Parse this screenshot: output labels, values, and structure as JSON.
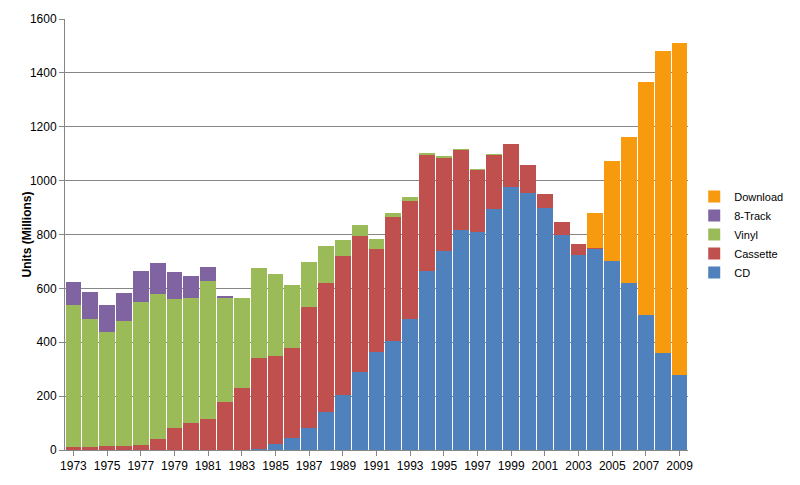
{
  "chart_data": {
    "type": "bar",
    "y_label": "Units (Millions)",
    "categories": [
      "1973",
      null,
      "1975",
      null,
      "1977",
      null,
      "1979",
      null,
      "1981",
      null,
      "1983",
      null,
      "1985",
      null,
      "1987",
      null,
      "1989",
      null,
      "1991",
      null,
      "1993",
      null,
      "1995",
      null,
      "1997",
      null,
      "1999",
      null,
      "2001",
      null,
      "2003",
      null,
      "2005",
      null,
      "2007",
      null,
      "2009"
    ],
    "series": [
      {
        "name": "CD",
        "color": "#4F81BD",
        "values": [
          0,
          0,
          0,
          0,
          0,
          0,
          0,
          0,
          0,
          0,
          0,
          5,
          23,
          45,
          80,
          140,
          205,
          288,
          365,
          405,
          485,
          665,
          740,
          815,
          810,
          895,
          975,
          955,
          900,
          800,
          725,
          745,
          700,
          620,
          500,
          360,
          278
        ]
      },
      {
        "name": "Cassette",
        "color": "#C0504D",
        "values": [
          10,
          10,
          15,
          15,
          20,
          40,
          80,
          100,
          115,
          180,
          230,
          335,
          327,
          335,
          450,
          480,
          515,
          507,
          380,
          460,
          440,
          430,
          345,
          297,
          230,
          200,
          160,
          103,
          50,
          45,
          40,
          5,
          0,
          0,
          0,
          0,
          0
        ]
      },
      {
        "name": "Vinyl",
        "color": "#9BBB59",
        "values": [
          530,
          475,
          422,
          465,
          528,
          540,
          480,
          465,
          513,
          383,
          336,
          335,
          305,
          232,
          167,
          138,
          60,
          40,
          40,
          15,
          15,
          7,
          8,
          5,
          5,
          5,
          0,
          0,
          2,
          0,
          0,
          0,
          0,
          0,
          0,
          0,
          0
        ]
      },
      {
        "name": "8-Track",
        "color": "#8064A2",
        "values": [
          85,
          100,
          103,
          103,
          117,
          115,
          100,
          80,
          50,
          7,
          0,
          0,
          0,
          0,
          0,
          0,
          0,
          0,
          0,
          0,
          0,
          0,
          0,
          0,
          0,
          0,
          0,
          0,
          0,
          0,
          0,
          0,
          0,
          0,
          0,
          0,
          0
        ]
      },
      {
        "name": "Download",
        "color": "#F79A0E",
        "values": [
          0,
          0,
          0,
          0,
          0,
          0,
          0,
          0,
          0,
          0,
          0,
          0,
          0,
          0,
          0,
          0,
          0,
          0,
          0,
          0,
          0,
          0,
          0,
          0,
          0,
          0,
          0,
          0,
          0,
          0,
          0,
          130,
          372,
          542,
          867,
          1120,
          1234
        ]
      }
    ],
    "ylim": [
      0,
      1600
    ],
    "yticks": [
      0,
      200,
      400,
      600,
      800,
      1000,
      1200,
      1400,
      1600
    ],
    "grid": true,
    "stacked": true,
    "legend": "right"
  }
}
